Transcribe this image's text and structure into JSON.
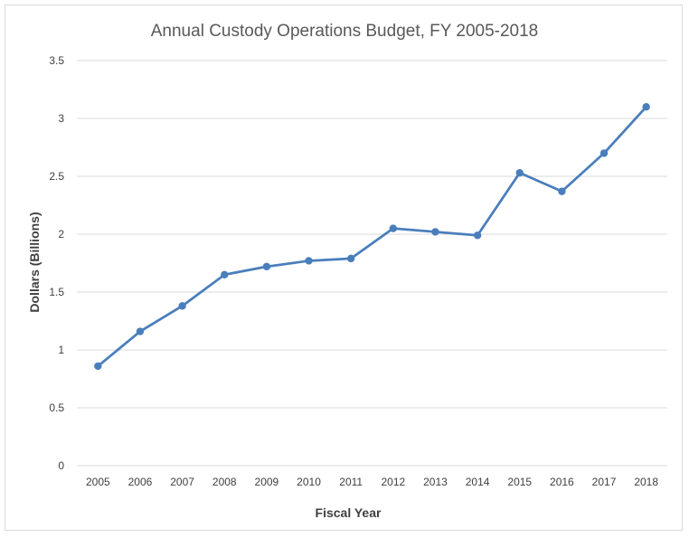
{
  "chart_data": {
    "type": "line",
    "title": "Annual Custody Operations Budget, FY 2005-2018",
    "xlabel": "Fiscal Year",
    "ylabel": "Dollars (Billions)",
    "categories": [
      "2005",
      "2006",
      "2007",
      "2008",
      "2009",
      "2010",
      "2011",
      "2012",
      "2013",
      "2014",
      "2015",
      "2016",
      "2017",
      "2018"
    ],
    "series": [
      {
        "values": [
          0.86,
          1.16,
          1.38,
          1.65,
          1.72,
          1.77,
          1.79,
          2.05,
          2.02,
          1.99,
          2.53,
          2.37,
          2.7,
          3.1
        ],
        "color": "#4a7ebb"
      }
    ],
    "ylim": [
      0,
      3.5
    ],
    "yticks": [
      "0",
      "0.5",
      "1",
      "1.5",
      "2",
      "2.5",
      "3",
      "3.5"
    ],
    "grid": true,
    "legend": "none",
    "colors": {
      "gridline": "#d9d9d9",
      "text": "#404040",
      "title": "#595959"
    }
  }
}
